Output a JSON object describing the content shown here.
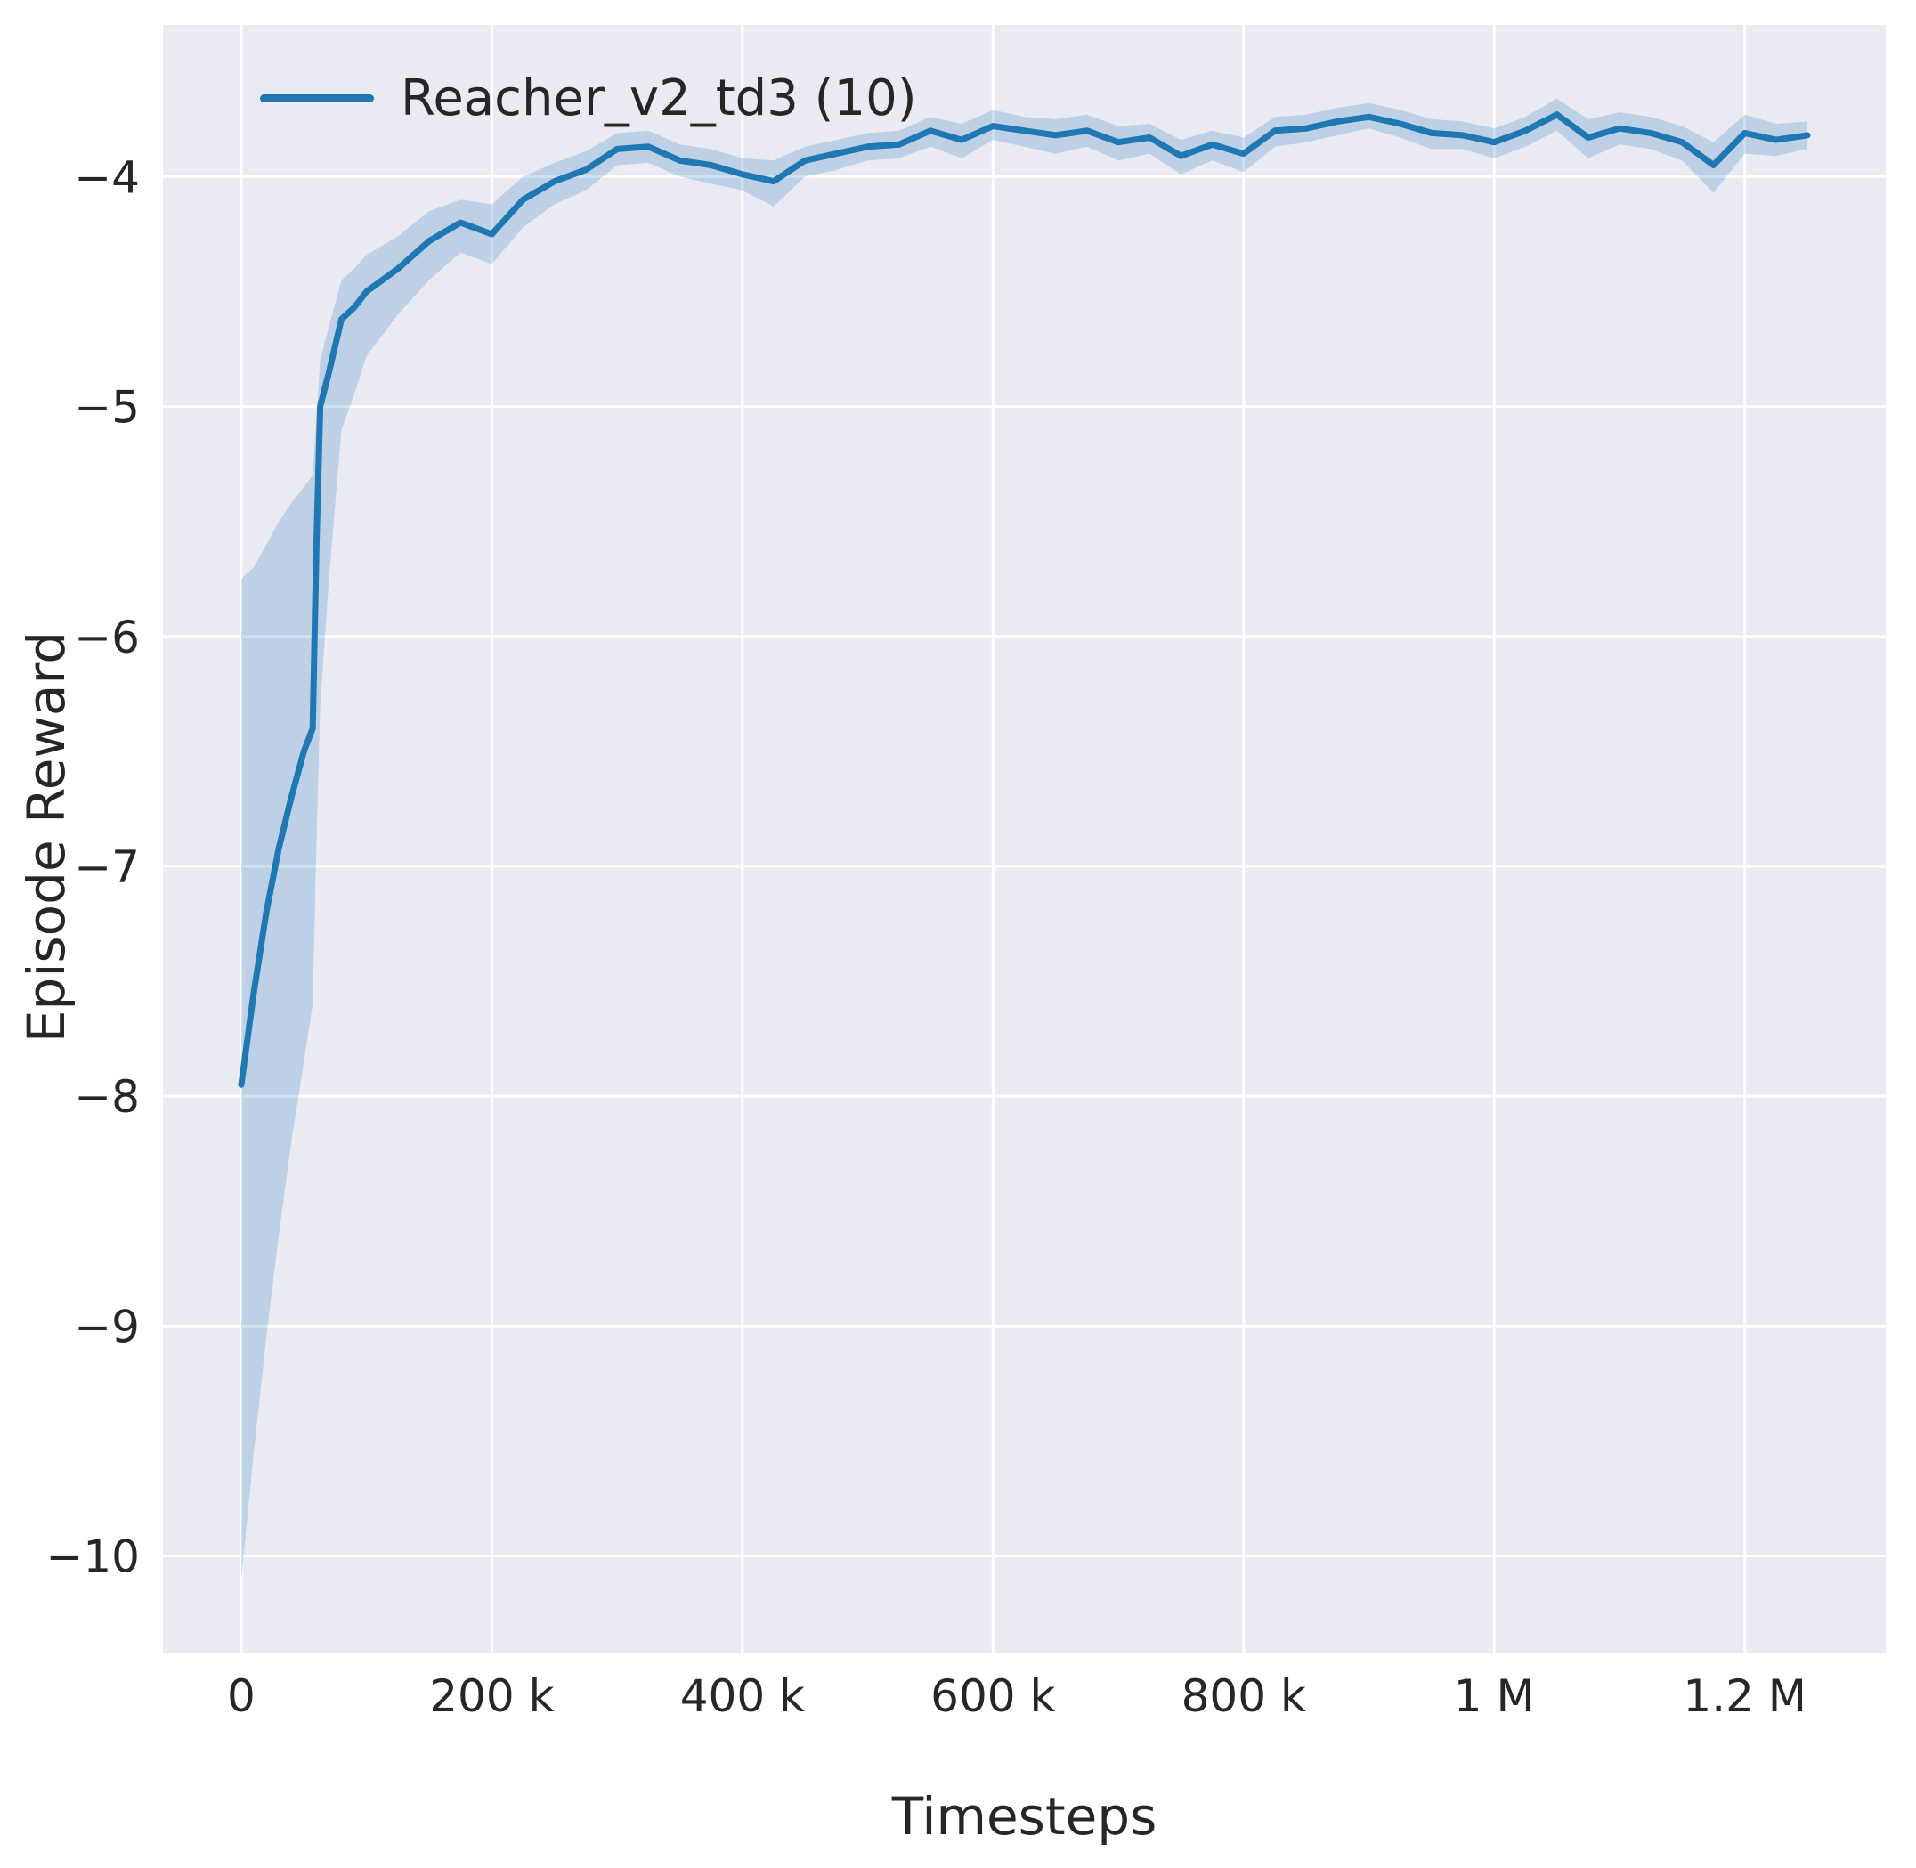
{
  "figure": {
    "background_color": "#ffffff"
  },
  "legend": {
    "label": "Reacher_v2_td3 (10)",
    "position": "upper left"
  },
  "axes": {
    "xlabel": "Timesteps",
    "ylabel": "Episode Reward"
  },
  "chart_data": {
    "type": "line",
    "title": "",
    "xlabel": "Timesteps",
    "ylabel": "Episode Reward",
    "legend_entries": [
      "Reacher_v2_td3 (10)"
    ],
    "grid": true,
    "legend_position": "upper left",
    "background": "#eaeaf2",
    "grid_color": "#ffffff",
    "line_color": "#1f77b4",
    "band_color": "#1f77b4",
    "band_opacity": 0.22,
    "text_color": "#262626",
    "x_units": "thousands of timesteps",
    "xlim_k": [
      -62.5,
      1312.5
    ],
    "ylim": [
      -10.42,
      -3.34
    ],
    "xticks": {
      "values_k": [
        0,
        200,
        400,
        600,
        800,
        1000,
        1200
      ],
      "labels": [
        "0",
        "200 k",
        "400 k",
        "600 k",
        "800 k",
        "1 M",
        "1.2 M"
      ]
    },
    "yticks": {
      "values": [
        -4,
        -5,
        -6,
        -7,
        -8,
        -9,
        -10
      ],
      "labels": [
        "−4",
        "−5",
        "−6",
        "−7",
        "−8",
        "−9",
        "−10"
      ]
    },
    "series": [
      {
        "name": "Reacher_v2_td3 (10)",
        "x_k": [
          0,
          10,
          20,
          30,
          40,
          50,
          57,
          60,
          63,
          70,
          80,
          90,
          100,
          125,
          150,
          175,
          200,
          225,
          250,
          275,
          300,
          325,
          350,
          375,
          400,
          425,
          450,
          475,
          500,
          525,
          550,
          575,
          600,
          625,
          650,
          675,
          700,
          725,
          750,
          775,
          800,
          825,
          850,
          875,
          900,
          925,
          950,
          975,
          1000,
          1025,
          1050,
          1075,
          1100,
          1125,
          1150,
          1175,
          1200,
          1225,
          1250
        ],
        "mean": [
          -7.95,
          -7.55,
          -7.2,
          -6.92,
          -6.7,
          -6.5,
          -6.4,
          -5.6,
          -5.0,
          -4.85,
          -4.62,
          -4.57,
          -4.5,
          -4.4,
          -4.28,
          -4.2,
          -4.25,
          -4.1,
          -4.02,
          -3.97,
          -3.88,
          -3.87,
          -3.93,
          -3.95,
          -3.99,
          -4.02,
          -3.93,
          -3.9,
          -3.87,
          -3.86,
          -3.8,
          -3.84,
          -3.78,
          -3.8,
          -3.82,
          -3.8,
          -3.85,
          -3.83,
          -3.91,
          -3.86,
          -3.9,
          -3.8,
          -3.79,
          -3.76,
          -3.74,
          -3.77,
          -3.81,
          -3.82,
          -3.85,
          -3.8,
          -3.73,
          -3.83,
          -3.79,
          -3.81,
          -3.85,
          -3.95,
          -3.81,
          -3.84,
          -3.82
        ],
        "lower": [
          -10.1,
          -9.55,
          -9.05,
          -8.6,
          -8.2,
          -7.85,
          -7.6,
          -6.9,
          -6.3,
          -5.75,
          -5.1,
          -4.95,
          -4.78,
          -4.6,
          -4.45,
          -4.33,
          -4.38,
          -4.22,
          -4.12,
          -4.06,
          -3.95,
          -3.94,
          -4.0,
          -4.03,
          -4.06,
          -4.13,
          -4.0,
          -3.97,
          -3.93,
          -3.92,
          -3.87,
          -3.92,
          -3.84,
          -3.87,
          -3.9,
          -3.87,
          -3.93,
          -3.9,
          -3.99,
          -3.93,
          -3.98,
          -3.87,
          -3.85,
          -3.82,
          -3.79,
          -3.83,
          -3.88,
          -3.88,
          -3.92,
          -3.87,
          -3.8,
          -3.92,
          -3.86,
          -3.88,
          -3.93,
          -4.07,
          -3.9,
          -3.91,
          -3.88
        ],
        "upper": [
          -5.75,
          -5.7,
          -5.6,
          -5.5,
          -5.42,
          -5.35,
          -5.3,
          -5.05,
          -4.8,
          -4.65,
          -4.45,
          -4.4,
          -4.34,
          -4.26,
          -4.15,
          -4.1,
          -4.12,
          -4.0,
          -3.94,
          -3.89,
          -3.81,
          -3.8,
          -3.86,
          -3.88,
          -3.92,
          -3.93,
          -3.87,
          -3.84,
          -3.81,
          -3.8,
          -3.74,
          -3.77,
          -3.71,
          -3.74,
          -3.75,
          -3.73,
          -3.78,
          -3.77,
          -3.84,
          -3.8,
          -3.83,
          -3.74,
          -3.73,
          -3.7,
          -3.68,
          -3.71,
          -3.75,
          -3.76,
          -3.79,
          -3.74,
          -3.66,
          -3.75,
          -3.72,
          -3.74,
          -3.78,
          -3.85,
          -3.73,
          -3.77,
          -3.76
        ]
      }
    ]
  }
}
